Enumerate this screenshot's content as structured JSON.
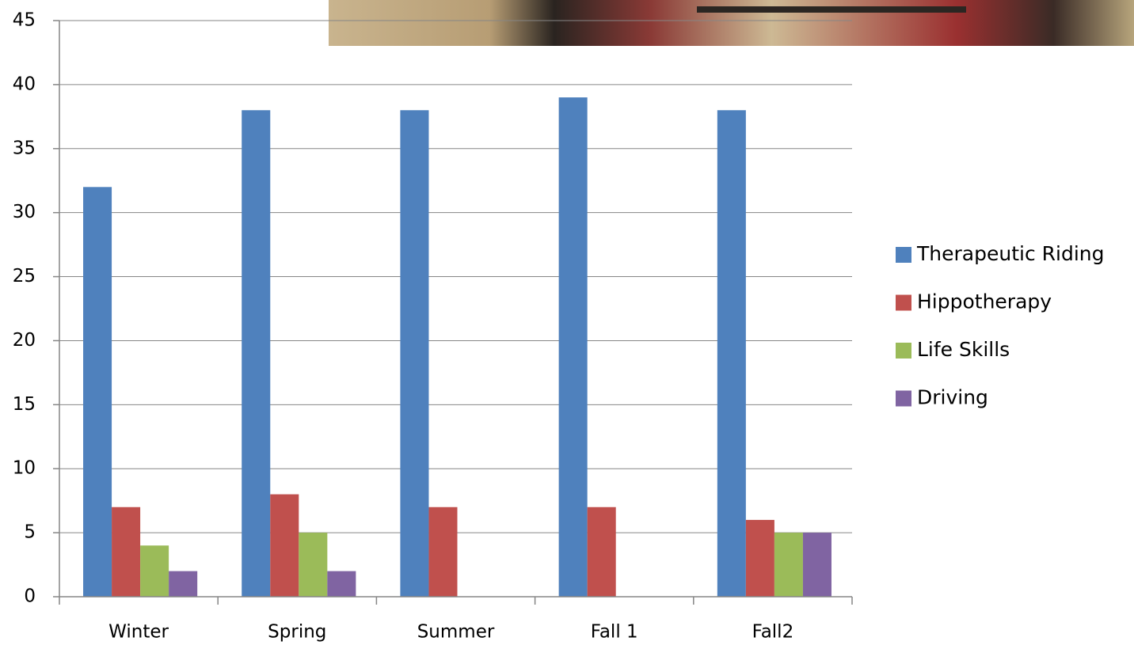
{
  "chart_data": {
    "type": "bar",
    "categories": [
      "Winter",
      "Spring",
      "Summer",
      "Fall 1",
      "Fall2"
    ],
    "series": [
      {
        "name": "Therapeutic Riding",
        "color": "#4f81bd",
        "values": [
          32,
          38,
          38,
          39,
          38
        ]
      },
      {
        "name": "Hippotherapy",
        "color": "#c0504d",
        "values": [
          7,
          8,
          7,
          7,
          6
        ]
      },
      {
        "name": "Life Skills",
        "color": "#9bbb59",
        "values": [
          4,
          5,
          0,
          0,
          5
        ]
      },
      {
        "name": "Driving",
        "color": "#8064a2",
        "values": [
          2,
          2,
          0,
          0,
          5
        ]
      }
    ],
    "ylim": [
      0,
      45
    ],
    "yticks": [
      0,
      5,
      10,
      15,
      20,
      25,
      30,
      35,
      40,
      45
    ],
    "grid": true,
    "legend": "right"
  }
}
